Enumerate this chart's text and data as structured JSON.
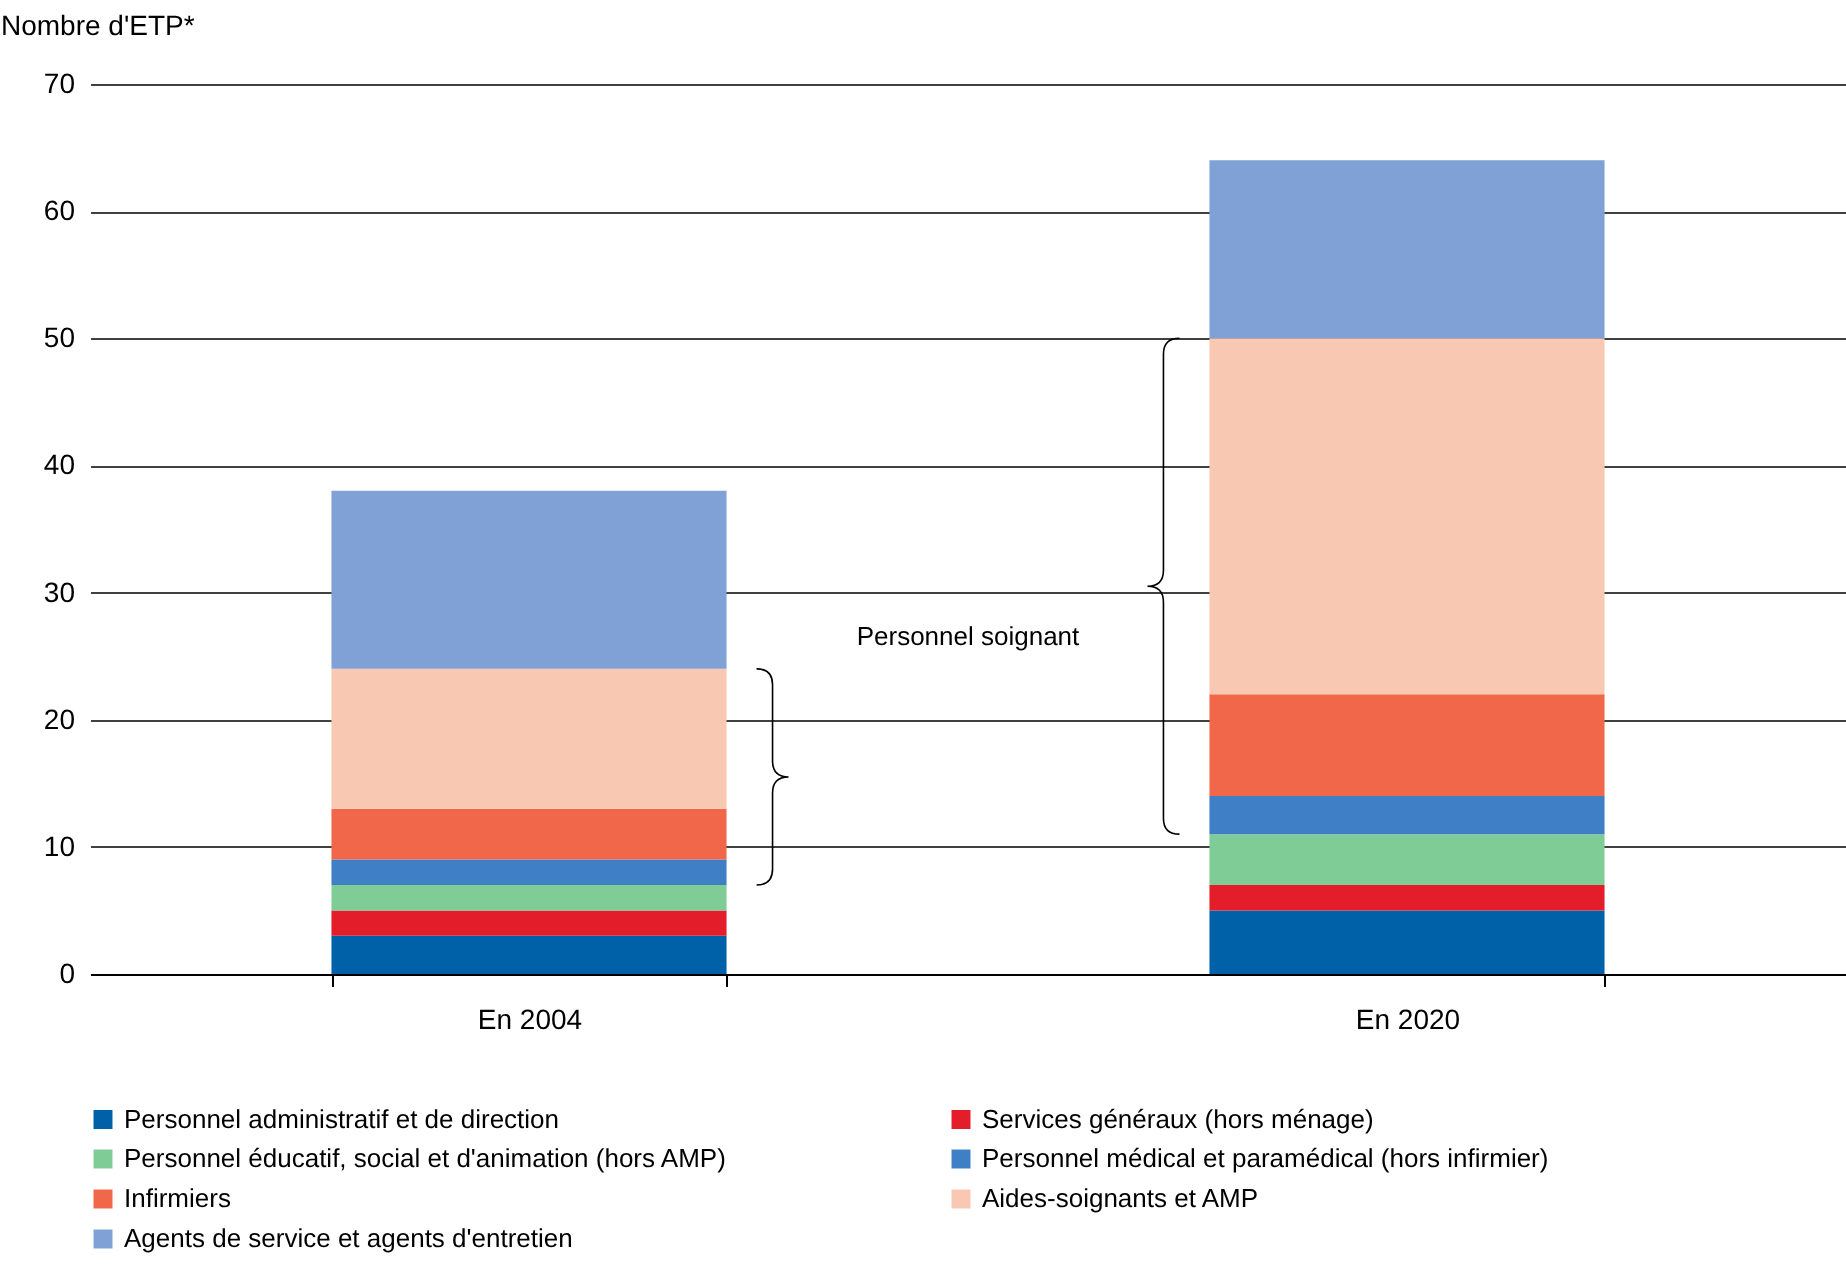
{
  "chart_data": {
    "type": "bar",
    "stacked": true,
    "ylabel": "Nombre d'ETP*",
    "categories": [
      "En 2004",
      "En 2020"
    ],
    "series": [
      {
        "name": "Personnel administratif et de direction",
        "color": "#0061a8",
        "values": [
          3,
          5
        ]
      },
      {
        "name": "Services généraux (hors ménage)",
        "color": "#e41d2b",
        "values": [
          2,
          2
        ]
      },
      {
        "name": "Personnel éducatif, social et d'animation (hors AMP)",
        "color": "#7fcc96",
        "values": [
          2,
          4
        ]
      },
      {
        "name": "Personnel médical et paramédical (hors infirmier)",
        "color": "#3f7fc5",
        "values": [
          2,
          3
        ]
      },
      {
        "name": "Infirmiers",
        "color": "#f0674a",
        "values": [
          4,
          8
        ]
      },
      {
        "name": "Aides-soignants et AMP",
        "color": "#f9c8b2",
        "values": [
          11,
          28
        ]
      },
      {
        "name": "Agents de service et agents d'entretien",
        "color": "#7fa1d5",
        "values": [
          14,
          14
        ]
      }
    ],
    "ylim": [
      0,
      70
    ],
    "yticks": [
      0,
      10,
      20,
      30,
      40,
      50,
      60,
      70
    ],
    "grid": "y",
    "legend": "bottom",
    "annotations": [
      "Personnel soignant"
    ]
  }
}
